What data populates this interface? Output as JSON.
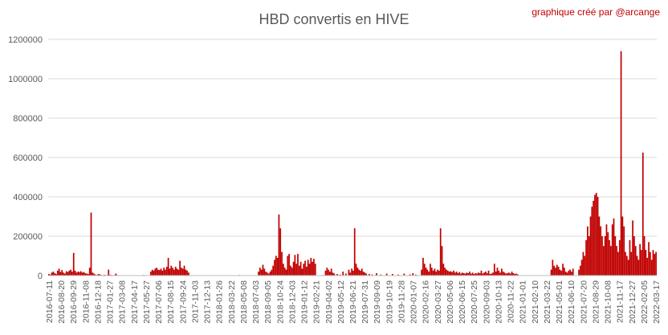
{
  "chart_data": {
    "type": "bar",
    "title": "HBD convertis en HIVE",
    "annotation": "graphique créé par @arcange",
    "colors": {
      "bar": "#c00000",
      "annotation": "#c00000",
      "grid": "#d9d9d9",
      "text": "#595959"
    },
    "ylim": [
      0,
      1200000
    ],
    "yticks": [
      "0",
      "200000",
      "400000",
      "600000",
      "800000",
      "1000000",
      "1200000"
    ],
    "grid": true,
    "x_tick_labels": [
      "2016-07-11",
      "2016-08-20",
      "2016-09-29",
      "2016-11-08",
      "2016-12-18",
      "2017-01-27",
      "2017-03-08",
      "2017-04-17",
      "2017-05-27",
      "2017-07-06",
      "2017-08-15",
      "2017-09-24",
      "2017-11-03",
      "2017-12-13",
      "2018-01-26",
      "2018-03-22",
      "2018-05-08",
      "2018-07-03",
      "2018-09-05",
      "2018-10-24",
      "2018-12-03",
      "2019-01-12",
      "2019-02-21",
      "2019-04-02",
      "2019-05-12",
      "2019-06-21",
      "2019-07-31",
      "2019-09-09",
      "2019-10-19",
      "2019-11-28",
      "2020-01-07",
      "2020-02-16",
      "2020-03-27",
      "2020-05-06",
      "2020-06-15",
      "2020-07-25",
      "2020-09-03",
      "2020-10-13",
      "2020-11-22",
      "2021-01-01",
      "2021-02-10",
      "2021-03-22",
      "2021-05-01",
      "2021-06-10",
      "2021-07-20",
      "2021-08-29",
      "2021-10-08",
      "2021-11-17",
      "2021-12-27",
      "2022-02-05",
      "2022-03-17"
    ],
    "series": [
      {
        "values": [
          [
            0,
            8000
          ],
          [
            1,
            5000
          ],
          [
            2,
            15000
          ],
          [
            3,
            20000
          ],
          [
            4,
            12000
          ],
          [
            5,
            8000
          ],
          [
            6,
            25000
          ],
          [
            7,
            35000
          ],
          [
            8,
            18000
          ],
          [
            9,
            28000
          ],
          [
            10,
            15000
          ],
          [
            11,
            10000
          ],
          [
            12,
            22000
          ],
          [
            13,
            18000
          ],
          [
            14,
            25000
          ],
          [
            15,
            30000
          ],
          [
            16,
            20000
          ],
          [
            17,
            115000
          ],
          [
            18,
            25000
          ],
          [
            19,
            15000
          ],
          [
            20,
            20000
          ],
          [
            21,
            18000
          ],
          [
            22,
            22000
          ],
          [
            23,
            15000
          ],
          [
            24,
            18000
          ],
          [
            25,
            12000
          ],
          [
            26,
            10000
          ],
          [
            27,
            8000
          ],
          [
            28,
            40000
          ],
          [
            29,
            320000
          ],
          [
            30,
            15000
          ],
          [
            31,
            10000
          ],
          [
            32,
            5000
          ],
          [
            33,
            3000
          ],
          [
            34,
            8000
          ],
          [
            35,
            6000
          ],
          [
            36,
            3000
          ],
          [
            37,
            2000
          ],
          [
            38,
            4000
          ],
          [
            39,
            2000
          ],
          [
            40,
            3000
          ],
          [
            41,
            30000
          ],
          [
            42,
            4000
          ],
          [
            43,
            3000
          ],
          [
            44,
            2000
          ],
          [
            45,
            3000
          ],
          [
            46,
            10000
          ],
          [
            47,
            3000
          ],
          [
            48,
            2000
          ],
          [
            49,
            1000
          ],
          [
            55,
            2000
          ],
          [
            60,
            1500
          ],
          [
            65,
            3000
          ],
          [
            70,
            20000
          ],
          [
            71,
            30000
          ],
          [
            72,
            25000
          ],
          [
            73,
            35000
          ],
          [
            74,
            40000
          ],
          [
            75,
            30000
          ],
          [
            76,
            28000
          ],
          [
            77,
            35000
          ],
          [
            78,
            25000
          ],
          [
            79,
            40000
          ],
          [
            80,
            30000
          ],
          [
            81,
            45000
          ],
          [
            82,
            90000
          ],
          [
            83,
            35000
          ],
          [
            84,
            50000
          ],
          [
            85,
            40000
          ],
          [
            86,
            30000
          ],
          [
            87,
            45000
          ],
          [
            88,
            35000
          ],
          [
            89,
            30000
          ],
          [
            90,
            75000
          ],
          [
            91,
            40000
          ],
          [
            92,
            35000
          ],
          [
            93,
            50000
          ],
          [
            94,
            30000
          ],
          [
            95,
            25000
          ],
          [
            96,
            15000
          ],
          [
            100,
            1000
          ],
          [
            110,
            1000
          ],
          [
            120,
            1500
          ],
          [
            130,
            2000
          ],
          [
            131,
            3000
          ],
          [
            132,
            1000
          ],
          [
            140,
            1500
          ],
          [
            144,
            20000
          ],
          [
            145,
            40000
          ],
          [
            146,
            30000
          ],
          [
            147,
            55000
          ],
          [
            148,
            35000
          ],
          [
            149,
            20000
          ],
          [
            150,
            15000
          ],
          [
            151,
            10000
          ],
          [
            152,
            20000
          ],
          [
            153,
            30000
          ],
          [
            154,
            50000
          ],
          [
            155,
            80000
          ],
          [
            156,
            100000
          ],
          [
            157,
            90000
          ],
          [
            158,
            310000
          ],
          [
            159,
            240000
          ],
          [
            160,
            120000
          ],
          [
            161,
            60000
          ],
          [
            162,
            40000
          ],
          [
            163,
            30000
          ],
          [
            164,
            100000
          ],
          [
            165,
            110000
          ],
          [
            166,
            50000
          ],
          [
            167,
            40000
          ],
          [
            168,
            70000
          ],
          [
            169,
            105000
          ],
          [
            170,
            60000
          ],
          [
            171,
            110000
          ],
          [
            172,
            50000
          ],
          [
            173,
            70000
          ],
          [
            174,
            35000
          ],
          [
            175,
            60000
          ],
          [
            176,
            75000
          ],
          [
            177,
            45000
          ],
          [
            178,
            80000
          ],
          [
            179,
            60000
          ],
          [
            180,
            90000
          ],
          [
            181,
            70000
          ],
          [
            182,
            85000
          ],
          [
            183,
            60000
          ],
          [
            186,
            2000
          ],
          [
            188,
            3000
          ],
          [
            190,
            25000
          ],
          [
            191,
            40000
          ],
          [
            192,
            30000
          ],
          [
            193,
            20000
          ],
          [
            194,
            35000
          ],
          [
            195,
            15000
          ],
          [
            196,
            10000
          ],
          [
            198,
            8000
          ],
          [
            200,
            5000
          ],
          [
            202,
            20000
          ],
          [
            204,
            10000
          ],
          [
            206,
            30000
          ],
          [
            207,
            15000
          ],
          [
            208,
            35000
          ],
          [
            209,
            25000
          ],
          [
            210,
            240000
          ],
          [
            211,
            60000
          ],
          [
            212,
            40000
          ],
          [
            213,
            30000
          ],
          [
            214,
            25000
          ],
          [
            215,
            35000
          ],
          [
            216,
            20000
          ],
          [
            217,
            15000
          ],
          [
            218,
            10000
          ],
          [
            220,
            8000
          ],
          [
            222,
            5000
          ],
          [
            225,
            12000
          ],
          [
            228,
            5000
          ],
          [
            232,
            10000
          ],
          [
            236,
            8000
          ],
          [
            240,
            5000
          ],
          [
            244,
            10000
          ],
          [
            248,
            6000
          ],
          [
            250,
            12000
          ],
          [
            252,
            5000
          ],
          [
            256,
            30000
          ],
          [
            257,
            90000
          ],
          [
            258,
            60000
          ],
          [
            259,
            40000
          ],
          [
            260,
            30000
          ],
          [
            261,
            20000
          ],
          [
            262,
            60000
          ],
          [
            263,
            40000
          ],
          [
            264,
            25000
          ],
          [
            265,
            35000
          ],
          [
            266,
            20000
          ],
          [
            267,
            30000
          ],
          [
            268,
            25000
          ],
          [
            269,
            240000
          ],
          [
            270,
            150000
          ],
          [
            271,
            60000
          ],
          [
            272,
            40000
          ],
          [
            273,
            30000
          ],
          [
            274,
            25000
          ],
          [
            275,
            20000
          ],
          [
            276,
            22000
          ],
          [
            277,
            18000
          ],
          [
            278,
            25000
          ],
          [
            279,
            15000
          ],
          [
            280,
            20000
          ],
          [
            281,
            12000
          ],
          [
            282,
            18000
          ],
          [
            283,
            10000
          ],
          [
            284,
            15000
          ],
          [
            285,
            12000
          ],
          [
            286,
            10000
          ],
          [
            287,
            15000
          ],
          [
            288,
            12000
          ],
          [
            289,
            20000
          ],
          [
            290,
            10000
          ],
          [
            291,
            15000
          ],
          [
            292,
            8000
          ],
          [
            293,
            12000
          ],
          [
            294,
            10000
          ],
          [
            295,
            15000
          ],
          [
            296,
            12000
          ],
          [
            297,
            25000
          ],
          [
            298,
            10000
          ],
          [
            299,
            15000
          ],
          [
            300,
            20000
          ],
          [
            301,
            12000
          ],
          [
            302,
            25000
          ],
          [
            303,
            8000
          ],
          [
            304,
            10000
          ],
          [
            305,
            15000
          ],
          [
            306,
            60000
          ],
          [
            307,
            20000
          ],
          [
            308,
            40000
          ],
          [
            309,
            25000
          ],
          [
            310,
            15000
          ],
          [
            311,
            35000
          ],
          [
            312,
            20000
          ],
          [
            313,
            15000
          ],
          [
            314,
            10000
          ],
          [
            315,
            12000
          ],
          [
            316,
            15000
          ],
          [
            317,
            10000
          ],
          [
            318,
            20000
          ],
          [
            319,
            12000
          ],
          [
            320,
            8000
          ],
          [
            321,
            10000
          ],
          [
            322,
            6000
          ],
          [
            345,
            30000
          ],
          [
            346,
            80000
          ],
          [
            347,
            50000
          ],
          [
            348,
            40000
          ],
          [
            349,
            55000
          ],
          [
            350,
            45000
          ],
          [
            351,
            30000
          ],
          [
            352,
            25000
          ],
          [
            353,
            60000
          ],
          [
            354,
            40000
          ],
          [
            355,
            20000
          ],
          [
            356,
            15000
          ],
          [
            357,
            25000
          ],
          [
            358,
            30000
          ],
          [
            359,
            20000
          ],
          [
            360,
            35000
          ],
          [
            364,
            30000
          ],
          [
            365,
            50000
          ],
          [
            366,
            80000
          ],
          [
            367,
            120000
          ],
          [
            368,
            100000
          ],
          [
            369,
            180000
          ],
          [
            370,
            250000
          ],
          [
            371,
            200000
          ],
          [
            372,
            300000
          ],
          [
            373,
            350000
          ],
          [
            374,
            380000
          ],
          [
            375,
            410000
          ],
          [
            376,
            420000
          ],
          [
            377,
            400000
          ],
          [
            378,
            300000
          ],
          [
            379,
            250000
          ],
          [
            380,
            200000
          ],
          [
            381,
            150000
          ],
          [
            382,
            200000
          ],
          [
            383,
            260000
          ],
          [
            384,
            220000
          ],
          [
            385,
            180000
          ],
          [
            386,
            150000
          ],
          [
            387,
            260000
          ],
          [
            388,
            290000
          ],
          [
            389,
            200000
          ],
          [
            390,
            150000
          ],
          [
            391,
            120000
          ],
          [
            392,
            180000
          ],
          [
            393,
            1140000
          ],
          [
            394,
            300000
          ],
          [
            395,
            250000
          ],
          [
            396,
            120000
          ],
          [
            397,
            100000
          ],
          [
            398,
            80000
          ],
          [
            399,
            180000
          ],
          [
            400,
            120000
          ],
          [
            401,
            280000
          ],
          [
            402,
            200000
          ],
          [
            403,
            150000
          ],
          [
            404,
            100000
          ],
          [
            405,
            80000
          ],
          [
            406,
            160000
          ],
          [
            407,
            130000
          ],
          [
            408,
            625000
          ],
          [
            409,
            200000
          ],
          [
            410,
            130000
          ],
          [
            411,
            90000
          ],
          [
            412,
            170000
          ],
          [
            413,
            120000
          ],
          [
            414,
            80000
          ],
          [
            415,
            130000
          ],
          [
            416,
            110000
          ],
          [
            417,
            120000
          ]
        ]
      }
    ]
  }
}
